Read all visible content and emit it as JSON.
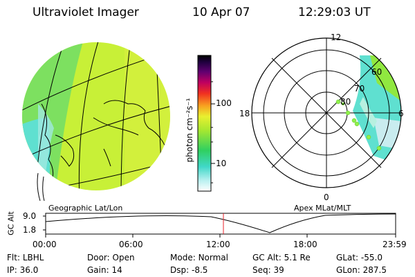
{
  "header": {
    "instrument": "Ultraviolet Imager",
    "date": "10 Apr 07",
    "time": "12:29:03 UT"
  },
  "left_panel": {
    "label": "Geographic Lat/Lon"
  },
  "right_panel": {
    "label": "Apex MLat/MLT",
    "mlt_labels": {
      "top": "12",
      "left": "18",
      "right": "6",
      "bottom": "0"
    },
    "lat_labels": [
      "60",
      "70",
      "80"
    ]
  },
  "colorbar": {
    "unit_label": "photon cm⁻²s⁻¹",
    "ticks": [
      "100",
      "10"
    ]
  },
  "altitude_plot": {
    "ylabel": "GC Alt",
    "yticks": [
      "9.0",
      "1.8"
    ],
    "xticks": [
      "00:00",
      "06:00",
      "12:00",
      "18:00",
      "23:59"
    ],
    "marker_time": "12:29",
    "marker_color": "#e8202a"
  },
  "status": {
    "row1": [
      {
        "label": "Flt:",
        "value": "LBHL"
      },
      {
        "label": "Door:",
        "value": "Open"
      },
      {
        "label": "Mode:",
        "value": "Normal"
      },
      {
        "label": "GC Alt:",
        "value": "5.1 Re"
      },
      {
        "label": "GLat:",
        "value": "-55.0"
      }
    ],
    "row2": [
      {
        "label": "IP:",
        "value": "36.0"
      },
      {
        "label": "Gain:",
        "value": "14"
      },
      {
        "label": "Dsp:",
        "value": "-8.5"
      },
      {
        "label": "Seq:",
        "value": "39"
      },
      {
        "label": "GLon:",
        "value": "287.5"
      }
    ]
  },
  "colors": {
    "earth_main": "#c8f037",
    "earth_green": "#7de060",
    "earth_cyan": "#5fe0d0",
    "aurora_light": "#c9ecef",
    "spot_green": "#90f04a"
  }
}
